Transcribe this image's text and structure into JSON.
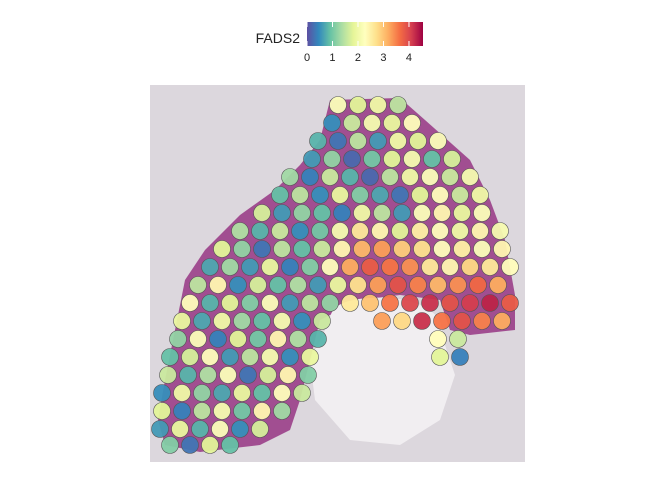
{
  "chart_data": {
    "type": "spatial",
    "colorbar_title": "FADS2",
    "clim": [
      0,
      4.55
    ],
    "cticks": [
      0,
      1,
      2,
      3,
      4
    ],
    "colorscale": [
      "#5e4fa2",
      "#3288bd",
      "#66c2a5",
      "#abdda4",
      "#e6f598",
      "#ffffbf",
      "#fee08b",
      "#fdae61",
      "#f46d43",
      "#d53e4f",
      "#9e0142"
    ],
    "xlim": [
      0,
      375
    ],
    "ylim": [
      0,
      377
    ],
    "x": [
      188,
      208,
      228,
      248,
      182,
      202,
      222,
      242,
      262,
      168,
      188,
      208,
      228,
      248,
      268,
      288,
      162,
      182,
      202,
      222,
      242,
      262,
      282,
      302,
      140,
      160,
      180,
      200,
      220,
      240,
      260,
      280,
      300,
      320,
      130,
      150,
      170,
      190,
      210,
      230,
      250,
      270,
      290,
      310,
      330,
      112,
      132,
      152,
      172,
      192,
      212,
      232,
      252,
      272,
      292,
      312,
      332,
      90,
      110,
      130,
      150,
      170,
      190,
      210,
      230,
      250,
      270,
      290,
      310,
      330,
      350,
      72,
      92,
      112,
      132,
      152,
      172,
      192,
      212,
      232,
      252,
      272,
      292,
      312,
      332,
      352,
      60,
      80,
      100,
      120,
      140,
      160,
      180,
      200,
      220,
      240,
      260,
      280,
      300,
      320,
      340,
      360,
      48,
      68,
      88,
      108,
      128,
      148,
      168,
      188,
      208,
      228,
      248,
      268,
      288,
      308,
      328,
      348,
      40,
      60,
      80,
      100,
      120,
      140,
      160,
      180,
      200,
      220,
      240,
      260,
      280,
      300,
      320,
      340,
      360,
      32,
      52,
      72,
      92,
      112,
      132,
      152,
      172,
      232,
      252,
      272,
      292,
      312,
      332,
      352,
      28,
      48,
      68,
      88,
      108,
      128,
      148,
      168,
      288,
      308,
      20,
      40,
      60,
      80,
      100,
      120,
      140,
      160,
      290,
      310,
      18,
      38,
      58,
      78,
      98,
      118,
      138,
      158,
      12,
      32,
      52,
      72,
      92,
      112,
      132,
      152,
      12,
      32,
      52,
      72,
      92,
      112,
      132,
      10,
      30,
      50,
      70,
      90,
      110,
      20,
      40,
      60,
      80
    ],
    "y": [
      20,
      20,
      20,
      20,
      38,
      38,
      38,
      38,
      38,
      56,
      56,
      56,
      56,
      56,
      56,
      56,
      74,
      74,
      74,
      74,
      74,
      74,
      74,
      74,
      92,
      92,
      92,
      92,
      92,
      92,
      92,
      92,
      92,
      92,
      110,
      110,
      110,
      110,
      110,
      110,
      110,
      110,
      110,
      110,
      110,
      128,
      128,
      128,
      128,
      128,
      128,
      128,
      128,
      128,
      128,
      128,
      128,
      146,
      146,
      146,
      146,
      146,
      146,
      146,
      146,
      146,
      146,
      146,
      146,
      146,
      146,
      164,
      164,
      164,
      164,
      164,
      164,
      164,
      164,
      164,
      164,
      164,
      164,
      164,
      164,
      164,
      182,
      182,
      182,
      182,
      182,
      182,
      182,
      182,
      182,
      182,
      182,
      182,
      182,
      182,
      182,
      182,
      200,
      200,
      200,
      200,
      200,
      200,
      200,
      200,
      200,
      200,
      200,
      200,
      200,
      200,
      200,
      200,
      218,
      218,
      218,
      218,
      218,
      218,
      218,
      218,
      218,
      218,
      218,
      218,
      218,
      218,
      218,
      218,
      218,
      236,
      236,
      236,
      236,
      236,
      236,
      236,
      236,
      236,
      236,
      236,
      236,
      236,
      236,
      236,
      254,
      254,
      254,
      254,
      254,
      254,
      254,
      254,
      254,
      254,
      272,
      272,
      272,
      272,
      272,
      272,
      272,
      272,
      272,
      272,
      290,
      290,
      290,
      290,
      290,
      290,
      290,
      290,
      308,
      308,
      308,
      308,
      308,
      308,
      308,
      308,
      326,
      326,
      326,
      326,
      326,
      326,
      326,
      344,
      344,
      344,
      344,
      344,
      344,
      360,
      360,
      360,
      360
    ],
    "values": [
      2.2,
      1.8,
      2.0,
      1.5,
      0.5,
      1.6,
      2.1,
      1.9,
      2.3,
      0.8,
      0.3,
      1.5,
      0.6,
      2.0,
      1.8,
      2.2,
      0.6,
      1.2,
      0.2,
      1.0,
      1.8,
      2.1,
      0.9,
      1.7,
      1.3,
      0.4,
      1.6,
      0.8,
      0.2,
      1.5,
      2.0,
      2.2,
      1.6,
      2.1,
      0.9,
      1.5,
      0.5,
      1.9,
      1.1,
      0.7,
      0.3,
      1.8,
      2.3,
      1.6,
      2.0,
      1.7,
      0.6,
      1.2,
      0.9,
      0.4,
      2.0,
      1.5,
      0.6,
      2.2,
      2.4,
      1.9,
      2.2,
      1.4,
      0.8,
      1.6,
      0.5,
      1.0,
      2.1,
      2.6,
      2.4,
      1.8,
      2.5,
      2.3,
      2.0,
      2.4,
      2.1,
      1.8,
      1.2,
      0.3,
      1.5,
      0.9,
      1.6,
      2.4,
      3.1,
      3.3,
      2.9,
      2.7,
      2.3,
      2.5,
      2.2,
      2.4,
      0.7,
      1.3,
      0.6,
      1.9,
      0.4,
      1.1,
      2.3,
      3.2,
      3.8,
      3.6,
      3.4,
      2.6,
      2.4,
      2.8,
      2.6,
      2.3,
      1.5,
      2.4,
      0.5,
      1.7,
      0.9,
      1.4,
      0.6,
      1.9,
      2.7,
      3.3,
      3.9,
      3.5,
      3.1,
      3.4,
      3.7,
      3.2,
      2.3,
      0.8,
      1.8,
      1.1,
      2.2,
      0.6,
      1.5,
      1.2,
      2.6,
      3.0,
      3.6,
      4.0,
      4.2,
      3.9,
      4.1,
      4.3,
      3.8,
      1.9,
      0.7,
      2.0,
      1.3,
      0.9,
      2.1,
      0.5,
      1.6,
      3.3,
      2.8,
      4.2,
      3.6,
      3.9,
      3.5,
      3.2,
      1.2,
      2.2,
      0.4,
      1.8,
      1.0,
      2.4,
      1.4,
      0.8,
      2.3,
      1.6,
      0.9,
      1.7,
      2.3,
      0.6,
      1.5,
      2.1,
      0.5,
      1.9,
      1.8,
      0.4,
      1.6,
      0.8,
      1.4,
      2.2,
      0.3,
      1.7,
      2.4,
      1.1,
      0.5,
      2.0,
      1.2,
      0.7,
      1.9,
      0.9,
      2.3,
      1.6,
      1.8,
      0.4,
      1.5,
      2.1,
      1.0,
      2.4,
      1.3,
      0.6,
      1.9,
      0.8,
      2.2,
      0.5,
      1.7,
      1.1,
      0.3,
      1.8,
      0.9
    ]
  }
}
